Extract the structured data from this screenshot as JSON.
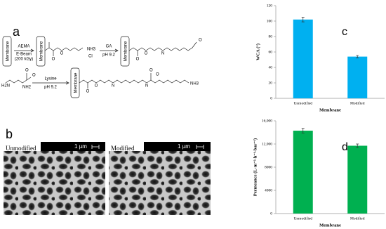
{
  "scheme": {
    "label": "a",
    "membrane_labels": [
      "Membrane",
      "Membrane",
      "Membrane",
      "Membrane"
    ],
    "step1": [
      "AEMA",
      "E-Beam",
      "(200 kGy)"
    ],
    "step2": [
      "GA",
      "pH 9.2"
    ],
    "step3": [
      "Lysine",
      "pH 9.2"
    ],
    "atoms": [
      "O",
      "O",
      "NH3",
      "Cl",
      "O",
      "O",
      "N",
      "O",
      "O",
      "O",
      "N",
      "N",
      "O",
      "O",
      "NH3",
      "H2N",
      "NH2",
      "O",
      "O"
    ]
  },
  "images": {
    "label": "b",
    "panels": [
      {
        "caption": "Unmodified",
        "scale": "1 µm"
      },
      {
        "caption": "Modified",
        "scale": "1 µm"
      }
    ]
  },
  "chart_data": [
    {
      "type": "bar",
      "panel_label": "c",
      "y_label": "WCA (°)",
      "x_label": "Membrane",
      "categories": [
        "Unmodified",
        "Modified"
      ],
      "values": [
        102,
        54
      ],
      "errors": [
        3,
        1.5
      ],
      "color": "#00b0f0",
      "ylim": [
        0,
        120
      ],
      "yticks": [
        0,
        20,
        40,
        60,
        80,
        100,
        120
      ]
    },
    {
      "type": "bar",
      "panel_label": "d",
      "y_label": "Permeance (L·m⁻²·h⁻¹·bar⁻¹)",
      "x_label": "Membrane",
      "categories": [
        "Unmodified",
        "Modified"
      ],
      "values": [
        14300,
        11700
      ],
      "errors": [
        400,
        300
      ],
      "color": "#00b050",
      "ylim": [
        0,
        16000
      ],
      "yticks": [
        0,
        4000,
        8000,
        {
          "value": 12000,
          "label": "12,000"
        },
        {
          "value": 16000,
          "label": "16,000"
        }
      ]
    }
  ]
}
